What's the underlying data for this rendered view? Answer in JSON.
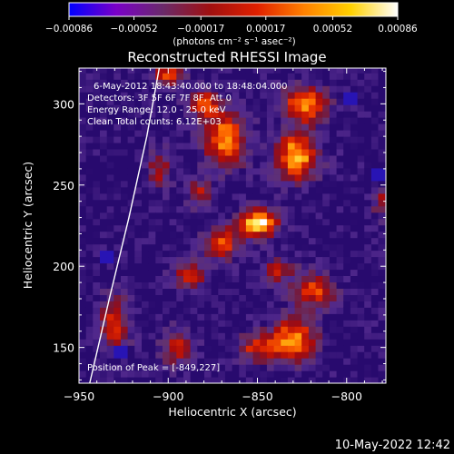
{
  "colorbar": {
    "ticks": [
      {
        "value": -0.00086,
        "label": "-0.00086"
      },
      {
        "value": -0.00052,
        "label": "-0.00052"
      },
      {
        "value": -0.00017,
        "label": "-0.00017"
      },
      {
        "value": 0.00017,
        "label": "0.00017"
      },
      {
        "value": 0.00052,
        "label": "0.00052"
      },
      {
        "value": 0.00086,
        "label": "0.00086"
      }
    ],
    "range": [
      -0.00086,
      0.00086
    ],
    "unit_label": "(photons cm⁻² s⁻¹ asec⁻²)",
    "colormap": [
      "#0000ff",
      "#7a00c8",
      "#6a2a6a",
      "#a01010",
      "#e02000",
      "#ff8000",
      "#ffd000",
      "#ffffff"
    ]
  },
  "chart_data": {
    "type": "heatmap",
    "title": "Reconstructed RHESSI Image",
    "xlabel": "Heliocentric X (arcsec)",
    "ylabel": "Heliocentric Y (arcsec)",
    "xlim": [
      -950,
      -778
    ],
    "ylim": [
      128,
      322
    ],
    "xticks": [
      -950,
      -900,
      -850,
      -800
    ],
    "yticks": [
      150,
      200,
      250,
      300
    ],
    "x_tick_labels": [
      "−950",
      "−900",
      "−850",
      "−800"
    ],
    "y_tick_labels": [
      "150",
      "200",
      "250",
      "300"
    ],
    "info_lines": [
      "6-May-2012 18:43:40.000 to 18:48:04.000",
      "Detectors: 3F 5F 6F 7F 8F, Att 0",
      "Energy Range: 12.0 - 25.0 keV",
      "Clean     Total counts: 6.12E+03"
    ],
    "peak_label": "Position of Peak = [-849,227]",
    "peak": {
      "x": -849,
      "y": 227
    },
    "limb_curve": [
      [
        -944,
        128
      ],
      [
        -933,
        180
      ],
      [
        -922,
        230
      ],
      [
        -912,
        280
      ],
      [
        -905,
        322
      ]
    ],
    "sources": [
      {
        "x": -849,
        "y": 227,
        "amp": 1.0,
        "sx": 7,
        "sy": 6
      },
      {
        "x": -828,
        "y": 268,
        "amp": 0.85,
        "sx": 8,
        "sy": 10
      },
      {
        "x": -823,
        "y": 300,
        "amp": 0.7,
        "sx": 9,
        "sy": 8
      },
      {
        "x": -868,
        "y": 278,
        "amp": 0.75,
        "sx": 8,
        "sy": 12
      },
      {
        "x": -880,
        "y": 300,
        "amp": 0.6,
        "sx": 6,
        "sy": 6
      },
      {
        "x": -830,
        "y": 155,
        "amp": 0.75,
        "sx": 9,
        "sy": 9
      },
      {
        "x": -818,
        "y": 185,
        "amp": 0.6,
        "sx": 8,
        "sy": 7
      },
      {
        "x": -870,
        "y": 215,
        "amp": 0.6,
        "sx": 7,
        "sy": 7
      },
      {
        "x": -888,
        "y": 195,
        "amp": 0.55,
        "sx": 6,
        "sy": 6
      },
      {
        "x": -900,
        "y": 318,
        "amp": 0.55,
        "sx": 6,
        "sy": 6
      },
      {
        "x": -930,
        "y": 165,
        "amp": 0.5,
        "sx": 6,
        "sy": 12
      },
      {
        "x": -850,
        "y": 150,
        "amp": 0.5,
        "sx": 8,
        "sy": 6
      },
      {
        "x": -882,
        "y": 245,
        "amp": 0.45,
        "sx": 5,
        "sy": 6
      },
      {
        "x": -905,
        "y": 260,
        "amp": 0.4,
        "sx": 5,
        "sy": 8
      },
      {
        "x": -780,
        "y": 240,
        "amp": 0.35,
        "sx": 4,
        "sy": 7
      },
      {
        "x": -838,
        "y": 198,
        "amp": 0.5,
        "sx": 6,
        "sy": 5
      },
      {
        "x": -895,
        "y": 150,
        "amp": 0.45,
        "sx": 6,
        "sy": 8
      }
    ],
    "blue_spots": [
      {
        "x": -785,
        "y": 255
      },
      {
        "x": -930,
        "y": 145
      },
      {
        "x": -935,
        "y": 205
      },
      {
        "x": -800,
        "y": 300
      }
    ]
  },
  "footer": {
    "timestamp": "10-May-2022 12:42"
  }
}
